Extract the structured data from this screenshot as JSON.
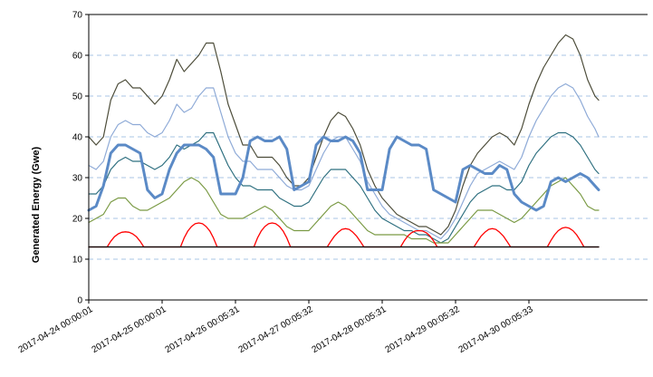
{
  "chart_data": {
    "type": "line",
    "title": "",
    "xlabel": "",
    "ylabel": "Generated Energy (Gwe)",
    "ylim": [
      0,
      70
    ],
    "yticks": [
      0,
      10,
      20,
      30,
      40,
      50,
      60,
      70
    ],
    "xlim": [
      0,
      6.95
    ],
    "xtick_labels": [
      "2017-04-24 00:00:01",
      "2017-04-25 00:00:01",
      "2017-04-26 00:05:31",
      "2017-04-27 00:05:32",
      "2017-04-28 00:05:31",
      "2017-04-29 00:05:32",
      "2017-04-30 00:05:33"
    ],
    "grid": "horizontal dashed",
    "legend": "none",
    "series": [
      {
        "color": "#4d4d3a",
        "width": 1.2,
        "x": [
          0,
          0.1,
          0.2,
          0.3,
          0.4,
          0.5,
          0.6,
          0.7,
          0.8,
          0.9,
          1.0,
          1.1,
          1.2,
          1.3,
          1.4,
          1.5,
          1.6,
          1.7,
          1.8,
          1.9,
          2.0,
          2.1,
          2.2,
          2.3,
          2.4,
          2.5,
          2.6,
          2.7,
          2.8,
          2.9,
          3.0,
          3.1,
          3.2,
          3.3,
          3.4,
          3.5,
          3.6,
          3.7,
          3.8,
          3.9,
          4.0,
          4.1,
          4.2,
          4.3,
          4.4,
          4.5,
          4.6,
          4.7,
          4.8,
          4.9,
          5.0,
          5.1,
          5.2,
          5.3,
          5.4,
          5.5,
          5.6,
          5.7,
          5.8,
          5.9,
          6.0,
          6.1,
          6.2,
          6.3,
          6.4,
          6.5,
          6.6,
          6.7,
          6.8,
          6.9,
          6.95
        ],
        "y": [
          40,
          38,
          40,
          49,
          53,
          54,
          52,
          52,
          50,
          48,
          50,
          54,
          59,
          56,
          58,
          60,
          63,
          63,
          56,
          48,
          43,
          38,
          38,
          35,
          35,
          35,
          33,
          30,
          28,
          28,
          30,
          35,
          40,
          44,
          46,
          45,
          42,
          38,
          32,
          28,
          25,
          23,
          21,
          20,
          19,
          18,
          18,
          17,
          16,
          18,
          22,
          28,
          33,
          36,
          38,
          40,
          41,
          40,
          38,
          42,
          48,
          53,
          57,
          60,
          63,
          65,
          64,
          60,
          54,
          50,
          49
        ]
      },
      {
        "color": "#8eaad7",
        "width": 1.2,
        "x": [
          0,
          0.1,
          0.2,
          0.3,
          0.4,
          0.5,
          0.6,
          0.7,
          0.8,
          0.9,
          1.0,
          1.1,
          1.2,
          1.3,
          1.4,
          1.5,
          1.6,
          1.7,
          1.8,
          1.9,
          2.0,
          2.1,
          2.2,
          2.3,
          2.4,
          2.5,
          2.6,
          2.7,
          2.8,
          2.9,
          3.0,
          3.1,
          3.2,
          3.3,
          3.4,
          3.5,
          3.6,
          3.7,
          3.8,
          3.9,
          4.0,
          4.1,
          4.2,
          4.3,
          4.4,
          4.5,
          4.6,
          4.7,
          4.8,
          4.9,
          5.0,
          5.1,
          5.2,
          5.3,
          5.4,
          5.5,
          5.6,
          5.7,
          5.8,
          5.9,
          6.0,
          6.1,
          6.2,
          6.3,
          6.4,
          6.5,
          6.6,
          6.7,
          6.8,
          6.9,
          6.95
        ],
        "y": [
          33,
          32,
          34,
          40,
          43,
          44,
          43,
          43,
          41,
          40,
          41,
          44,
          48,
          46,
          47,
          50,
          52,
          52,
          46,
          40,
          36,
          34,
          34,
          32,
          32,
          32,
          30,
          28,
          27,
          27,
          28,
          32,
          36,
          39,
          40,
          40,
          37,
          34,
          29,
          26,
          23,
          21,
          20,
          19,
          18,
          17,
          17,
          16,
          15,
          17,
          20,
          24,
          28,
          31,
          32,
          33,
          34,
          33,
          32,
          35,
          40,
          44,
          47,
          50,
          52,
          53,
          52,
          49,
          45,
          42,
          40
        ]
      },
      {
        "color": "#2f7080",
        "width": 1.2,
        "x": [
          0,
          0.1,
          0.2,
          0.3,
          0.4,
          0.5,
          0.6,
          0.7,
          0.8,
          0.9,
          1.0,
          1.1,
          1.2,
          1.3,
          1.4,
          1.5,
          1.6,
          1.7,
          1.8,
          1.9,
          2.0,
          2.1,
          2.2,
          2.3,
          2.4,
          2.5,
          2.6,
          2.7,
          2.8,
          2.9,
          3.0,
          3.1,
          3.2,
          3.3,
          3.4,
          3.5,
          3.6,
          3.7,
          3.8,
          3.9,
          4.0,
          4.1,
          4.2,
          4.3,
          4.4,
          4.5,
          4.6,
          4.7,
          4.8,
          4.9,
          5.0,
          5.1,
          5.2,
          5.3,
          5.4,
          5.5,
          5.6,
          5.7,
          5.8,
          5.9,
          6.0,
          6.1,
          6.2,
          6.3,
          6.4,
          6.5,
          6.6,
          6.7,
          6.8,
          6.9,
          6.95
        ],
        "y": [
          26,
          26,
          28,
          32,
          34,
          35,
          34,
          34,
          33,
          32,
          33,
          35,
          38,
          37,
          38,
          39,
          41,
          41,
          37,
          33,
          30,
          28,
          28,
          27,
          27,
          27,
          25,
          24,
          23,
          23,
          24,
          27,
          30,
          32,
          32,
          32,
          30,
          28,
          25,
          22,
          20,
          19,
          18,
          17,
          17,
          16,
          16,
          15,
          14,
          15,
          18,
          21,
          24,
          26,
          27,
          28,
          28,
          27,
          27,
          29,
          33,
          36,
          38,
          40,
          41,
          41,
          40,
          38,
          35,
          32,
          31
        ]
      },
      {
        "color": "#7a9a44",
        "width": 1.2,
        "x": [
          0,
          0.1,
          0.2,
          0.3,
          0.4,
          0.5,
          0.6,
          0.7,
          0.8,
          0.9,
          1.0,
          1.1,
          1.2,
          1.3,
          1.4,
          1.5,
          1.6,
          1.7,
          1.8,
          1.9,
          2.0,
          2.1,
          2.2,
          2.3,
          2.4,
          2.5,
          2.6,
          2.7,
          2.8,
          2.9,
          3.0,
          3.1,
          3.2,
          3.3,
          3.4,
          3.5,
          3.6,
          3.7,
          3.8,
          3.9,
          4.0,
          4.1,
          4.2,
          4.3,
          4.4,
          4.5,
          4.6,
          4.7,
          4.8,
          4.9,
          5.0,
          5.1,
          5.2,
          5.3,
          5.4,
          5.5,
          5.6,
          5.7,
          5.8,
          5.9,
          6.0,
          6.1,
          6.2,
          6.3,
          6.4,
          6.5,
          6.6,
          6.7,
          6.8,
          6.9,
          6.95
        ],
        "y": [
          19,
          20,
          21,
          24,
          25,
          25,
          23,
          22,
          22,
          23,
          24,
          25,
          27,
          29,
          30,
          29,
          27,
          24,
          21,
          20,
          20,
          20,
          21,
          22,
          23,
          22,
          20,
          18,
          17,
          17,
          17,
          19,
          21,
          23,
          24,
          23,
          21,
          19,
          17,
          16,
          16,
          16,
          16,
          16,
          15,
          15,
          15,
          14,
          14,
          14,
          16,
          18,
          20,
          22,
          22,
          22,
          21,
          20,
          19,
          20,
          22,
          24,
          26,
          28,
          29,
          30,
          28,
          26,
          23,
          22,
          22
        ]
      },
      {
        "color": "#5b8ac6",
        "width": 3,
        "x": [
          0,
          0.1,
          0.2,
          0.3,
          0.4,
          0.5,
          0.6,
          0.7,
          0.8,
          0.9,
          1.0,
          1.1,
          1.2,
          1.3,
          1.4,
          1.5,
          1.6,
          1.7,
          1.8,
          1.9,
          2.0,
          2.1,
          2.2,
          2.3,
          2.4,
          2.5,
          2.6,
          2.7,
          2.8,
          2.9,
          3.0,
          3.1,
          3.2,
          3.3,
          3.4,
          3.5,
          3.6,
          3.7,
          3.8,
          3.9,
          4.0,
          4.1,
          4.2,
          4.3,
          4.4,
          4.5,
          4.6,
          4.7,
          4.8,
          4.9,
          5.0,
          5.1,
          5.2,
          5.3,
          5.4,
          5.5,
          5.6,
          5.7,
          5.8,
          5.9,
          6.0,
          6.1,
          6.2,
          6.3,
          6.4,
          6.5,
          6.6,
          6.7,
          6.8,
          6.9,
          6.95
        ],
        "y": [
          22,
          23,
          28,
          36,
          38,
          38,
          37,
          36,
          27,
          25,
          26,
          32,
          36,
          38,
          38,
          38,
          37,
          35,
          26,
          26,
          26,
          30,
          39,
          40,
          39,
          39,
          40,
          37,
          27,
          28,
          29,
          38,
          40,
          39,
          39,
          40,
          39,
          36,
          27,
          27,
          27,
          37,
          40,
          39,
          38,
          38,
          37,
          27,
          26,
          25,
          24,
          32,
          33,
          32,
          31,
          31,
          33,
          32,
          26,
          24,
          23,
          22,
          23,
          29,
          30,
          29,
          30,
          31,
          30,
          28,
          27
        ]
      },
      {
        "color": "#ff0000",
        "width": 1.3,
        "x": [
          0,
          0.25,
          0.3,
          0.35,
          0.4,
          0.45,
          0.5,
          0.55,
          0.6,
          0.65,
          0.7,
          0.75,
          1.25,
          1.3,
          1.35,
          1.4,
          1.45,
          1.5,
          1.55,
          1.6,
          1.65,
          1.7,
          1.75,
          2.25,
          2.3,
          2.35,
          2.4,
          2.45,
          2.5,
          2.55,
          2.6,
          2.65,
          2.7,
          2.75,
          3.25,
          3.3,
          3.35,
          3.4,
          3.45,
          3.5,
          3.55,
          3.6,
          3.65,
          3.7,
          3.75,
          4.25,
          4.3,
          4.35,
          4.4,
          4.45,
          4.5,
          4.55,
          4.6,
          4.65,
          4.7,
          4.75,
          5.25,
          5.3,
          5.35,
          5.4,
          5.45,
          5.5,
          5.55,
          5.6,
          5.65,
          5.7,
          5.75,
          6.25,
          6.3,
          6.35,
          6.4,
          6.45,
          6.5,
          6.55,
          6.6,
          6.65,
          6.7,
          6.75,
          6.95
        ],
        "y": [
          13,
          13,
          14.4,
          15.5,
          16.2,
          16.6,
          16.7,
          16.6,
          16.2,
          15.5,
          14.4,
          13,
          13,
          15.2,
          16.9,
          18.0,
          18.7,
          18.9,
          18.7,
          18.0,
          16.9,
          15.2,
          13,
          13,
          15.2,
          16.9,
          18.0,
          18.7,
          18.9,
          18.7,
          18.0,
          16.9,
          15.2,
          13,
          13,
          14.4,
          15.7,
          16.6,
          17.3,
          17.5,
          17.3,
          16.6,
          15.7,
          14.4,
          13,
          13,
          14.5,
          15.7,
          16.5,
          16.9,
          17.0,
          16.9,
          16.5,
          15.7,
          14.5,
          13,
          13,
          14.4,
          15.7,
          16.6,
          17.3,
          17.5,
          17.3,
          16.6,
          15.7,
          14.4,
          13,
          13,
          14.6,
          16.0,
          17.0,
          17.6,
          17.8,
          17.6,
          17.0,
          16.0,
          14.6,
          13,
          13
        ]
      },
      {
        "color": "#000000",
        "width": 1.3,
        "x": [
          0,
          6.95
        ],
        "y": [
          13,
          13
        ]
      }
    ]
  }
}
